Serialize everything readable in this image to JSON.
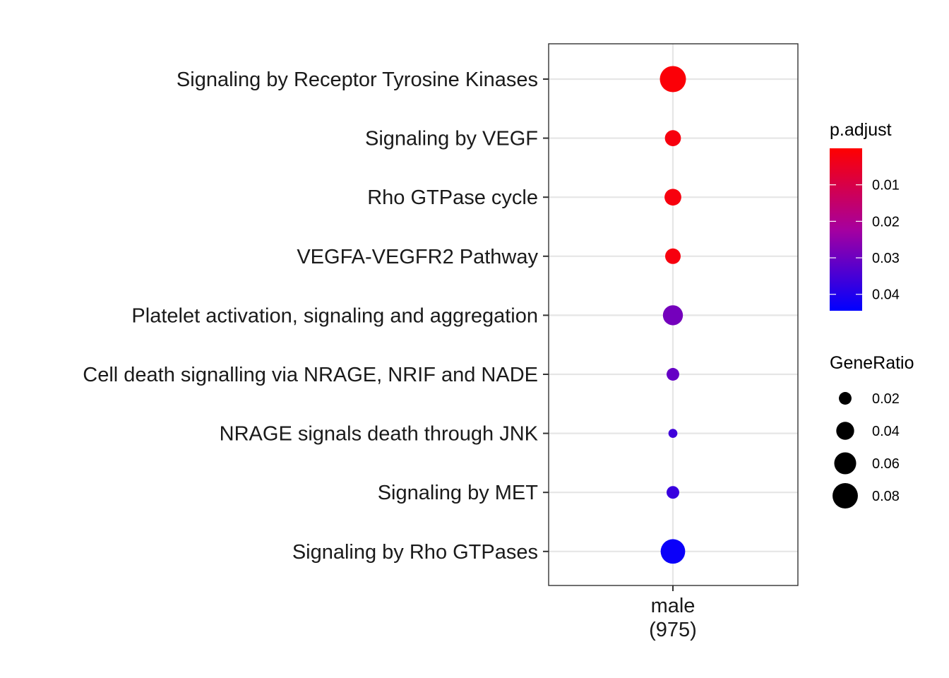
{
  "chart_data": {
    "type": "scatter",
    "title": "",
    "xlabel": "",
    "ylabel": "",
    "x_categories": [
      {
        "line1": "male",
        "line2": "(975)"
      }
    ],
    "categories": [
      "Signaling by Receptor Tyrosine Kinases",
      "Signaling by VEGF",
      "Rho GTPase cycle",
      "VEGFA-VEGFR2 Pathway",
      "Platelet activation, signaling and aggregation",
      "Cell death signalling via NRAGE, NRIF and NADE",
      "NRAGE signals death through JNK",
      "Signaling by MET",
      "Signaling by Rho GTPases"
    ],
    "points": [
      {
        "x": "male",
        "y": "Signaling by Receptor Tyrosine Kinases",
        "gene_ratio": 0.085,
        "p_adjust": 0.001
      },
      {
        "x": "male",
        "y": "Signaling by VEGF",
        "gene_ratio": 0.032,
        "p_adjust": 0.002
      },
      {
        "x": "male",
        "y": "Rho GTPase cycle",
        "gene_ratio": 0.035,
        "p_adjust": 0.002
      },
      {
        "x": "male",
        "y": "VEGFA-VEGFR2 Pathway",
        "gene_ratio": 0.03,
        "p_adjust": 0.002
      },
      {
        "x": "male",
        "y": "Platelet activation, signaling and aggregation",
        "gene_ratio": 0.05,
        "p_adjust": 0.029
      },
      {
        "x": "male",
        "y": "Cell death signalling via NRAGE, NRIF and NADE",
        "gene_ratio": 0.02,
        "p_adjust": 0.031
      },
      {
        "x": "male",
        "y": "NRAGE signals death through JNK",
        "gene_ratio": 0.01,
        "p_adjust": 0.036
      },
      {
        "x": "male",
        "y": "Signaling by MET",
        "gene_ratio": 0.02,
        "p_adjust": 0.037
      },
      {
        "x": "male",
        "y": "Signaling by Rho GTPases",
        "gene_ratio": 0.075,
        "p_adjust": 0.043
      }
    ],
    "color_legend": {
      "title": "p.adjust",
      "range": [
        0.0,
        0.0445
      ],
      "breaks": [
        0.01,
        0.02,
        0.03,
        0.04
      ],
      "labels": [
        "0.01",
        "0.02",
        "0.03",
        "0.04"
      ],
      "low_color": "#ff0000",
      "mid_color": "#a6009f",
      "high_color": "#0000ff"
    },
    "size_legend": {
      "title": "GeneRatio",
      "breaks": [
        0.02,
        0.04,
        0.06,
        0.08
      ],
      "labels": [
        "0.02",
        "0.04",
        "0.06",
        "0.08"
      ]
    },
    "grid": true,
    "legend_position": "right"
  }
}
